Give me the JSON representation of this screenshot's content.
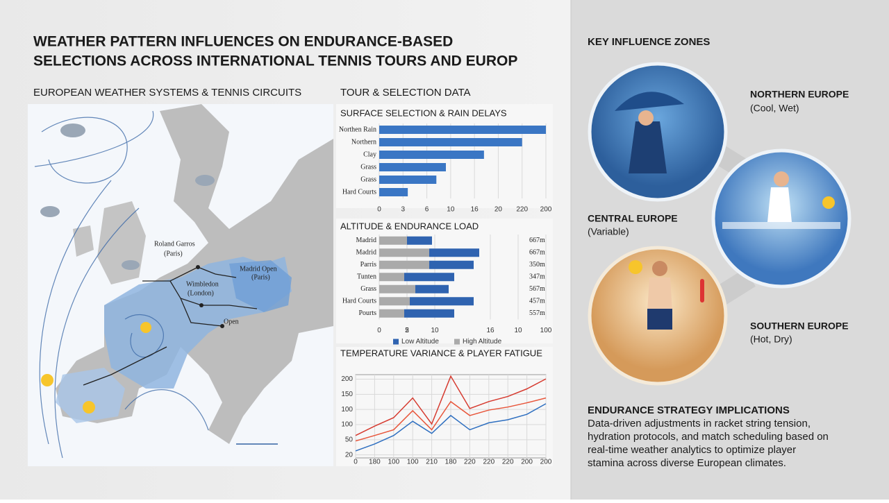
{
  "header": {
    "title": [
      "WEATHER PATTERN INFLUENCES ON ENDURANCE-BASED",
      "SELECTIONS ACROSS INTERNATIONAL TENNIS TOURS AND EUROP"
    ]
  },
  "map": {
    "title": "EUROPEAN WEATHER SYSTEMS & TENNIS CIRCUITS",
    "venues": [
      {
        "name": "Roland Garros",
        "city": "(Paris)"
      },
      {
        "name": "Wimbledon",
        "city": "(London)"
      },
      {
        "name": "Madrid Open",
        "city": "(Paris)"
      },
      {
        "name": "Open",
        "city": ""
      }
    ]
  },
  "data_title": "TOUR & SELECTION DATA",
  "chart_data": [
    {
      "type": "hbar",
      "title": "SURFACE SELECTION & RAIN DELAYS",
      "categories": [
        "Northen Rain",
        "Northern",
        "Clay",
        "Grass",
        "Grass",
        "Hard Courts"
      ],
      "values": [
        35,
        30,
        22,
        14,
        12,
        6
      ],
      "color": "#3a76c4",
      "xlim": [
        0,
        35
      ],
      "xticks": [
        0,
        {
          "value": 5,
          "label": "3"
        },
        {
          "value": 10,
          "label": "6"
        },
        {
          "value": 15,
          "label": "10"
        },
        {
          "value": 20,
          "label": "16"
        },
        {
          "value": 25,
          "label": "20"
        },
        {
          "value": 30,
          "label": "220"
        },
        {
          "value": 35,
          "label": "200"
        }
      ],
      "grid": true
    },
    {
      "type": "stacked-hbar",
      "title": "ALTITUDE & ENDURANCE LOAD",
      "categories": [
        "Madrid",
        "Madrid",
        "Parris",
        "Tunten",
        "Grass",
        "Hard Courts",
        "Pourts"
      ],
      "series": [
        {
          "name": "High Altitude",
          "color": "#aaaaaa",
          "values": [
            5,
            9,
            9,
            4.5,
            6.5,
            5.5,
            4.5
          ]
        },
        {
          "name": "Low Altitude",
          "color": "#2f63b0",
          "values": [
            4.5,
            9,
            8,
            9,
            6,
            11.5,
            9
          ]
        }
      ],
      "annotations": [
        "667m",
        "667m",
        "350m",
        "347m",
        "567m",
        "457m",
        "557m"
      ],
      "xlim": [
        0,
        30
      ],
      "xticks": [
        0,
        {
          "value": 5,
          "label": "2"
        },
        5,
        10,
        {
          "value": 20,
          "label": "16"
        },
        {
          "value": 25,
          "label": "10"
        },
        {
          "value": 30,
          "label": "100"
        }
      ],
      "grid": true
    },
    {
      "type": "line",
      "title": "TEMPERATURE VARIANCE & PLAYER FATIGUE",
      "x": [
        0,
        1,
        2,
        3,
        4,
        5,
        6,
        7,
        8,
        9,
        10
      ],
      "series": [
        {
          "name": null,
          "color": "#d63a2f",
          "values": [
            64,
            95,
            123,
            188,
            102,
            260,
            153,
            176,
            193,
            218,
            251
          ]
        },
        {
          "name": null,
          "color": "#e8553a",
          "values": [
            46,
            64,
            83,
            146,
            83,
            176,
            130,
            148,
            158,
            172,
            188
          ]
        },
        {
          "name": null,
          "color": "#2e6fc0",
          "values": [
            13,
            36,
            64,
            111,
            71,
            130,
            83,
            106,
            116,
            134,
            169
          ]
        }
      ],
      "xlim": [
        0,
        10
      ],
      "xticks": [
        0,
        {
          "value": 1,
          "label": "180"
        },
        {
          "value": 2,
          "label": "100"
        },
        {
          "value": 3,
          "label": "100"
        },
        {
          "value": 4,
          "label": "210"
        },
        {
          "value": 5,
          "label": "180"
        },
        {
          "value": 6,
          "label": "220"
        },
        {
          "value": 7,
          "label": "220"
        },
        {
          "value": 8,
          "label": "220"
        },
        {
          "value": 9,
          "label": "200"
        },
        {
          "value": 10,
          "label": "200"
        }
      ],
      "ylim": [
        -10,
        265
      ],
      "yticks": [
        {
          "value": 0,
          "label": "20"
        },
        50,
        100,
        {
          "value": 150,
          "label": "100"
        },
        {
          "value": 200,
          "label": "150"
        },
        {
          "value": 250,
          "label": "200"
        }
      ],
      "grid": true
    }
  ],
  "zones": {
    "title": "KEY INFLUENCE ZONES",
    "items": [
      {
        "name": "NORTHERN EUROPE",
        "note": "(Cool, Wet)"
      },
      {
        "name": "CENTRAL EUROPE",
        "note": "(Variable)"
      },
      {
        "name": "SOUTHERN EUROPE",
        "note": "(Hot, Dry)"
      }
    ]
  },
  "strategy": {
    "title": "ENDURANCE STRATEGY IMPLICATIONS",
    "lines": [
      "Data-driven adjustments in racket string tension,",
      "hydration protocols, and match scheduling based on",
      "real-time weather analytics to optimize player",
      "stamina across diverse European climates."
    ]
  }
}
